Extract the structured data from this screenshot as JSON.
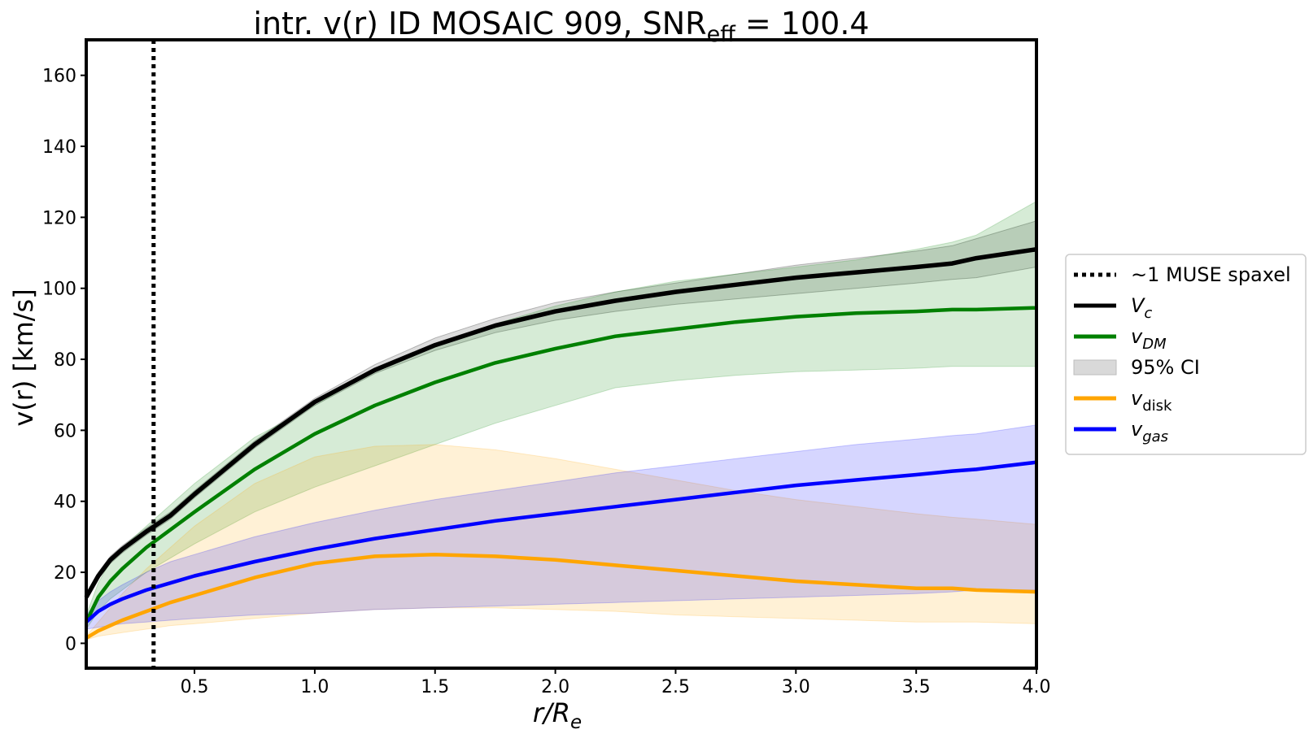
{
  "chart_data": {
    "type": "line",
    "title": {
      "main": "intr. v(r) ID MOSAIC 909, SNR",
      "sub": "eff",
      "tail": " = 100.4"
    },
    "xlabel": {
      "main": "r/R",
      "sub": "e"
    },
    "ylabel": "v(r) [km/s]",
    "xlim": [
      0.05,
      4.0
    ],
    "ylim": [
      -7,
      170
    ],
    "xticks": [
      0.5,
      1.0,
      1.5,
      2.0,
      2.5,
      3.0,
      3.5,
      4.0
    ],
    "xtick_labels": [
      "0.5",
      "1.0",
      "1.5",
      "2.0",
      "2.5",
      "3.0",
      "3.5",
      "4.0"
    ],
    "yticks": [
      0,
      20,
      40,
      60,
      80,
      100,
      120,
      140,
      160
    ],
    "ytick_labels": [
      "0",
      "20",
      "40",
      "60",
      "80",
      "100",
      "120",
      "140",
      "160"
    ],
    "grid": false,
    "legend_position": "outside-right",
    "vline": {
      "x": 0.33,
      "name": "~1 MUSE spaxel",
      "style": "dotted",
      "color": "#000000"
    },
    "x": [
      0.05,
      0.1,
      0.15,
      0.2,
      0.3,
      0.4,
      0.5,
      0.75,
      1.0,
      1.25,
      1.5,
      1.75,
      2.0,
      2.25,
      2.5,
      2.75,
      3.0,
      3.25,
      3.5,
      3.65,
      3.75,
      4.0
    ],
    "series": [
      {
        "name": "V",
        "sub": "c",
        "color": "#000000",
        "italic": true,
        "values": [
          13,
          19,
          23.5,
          26.5,
          31.5,
          36,
          42,
          56,
          68,
          77,
          84,
          89.5,
          93.5,
          96.5,
          99,
          101,
          103,
          104.5,
          106,
          107,
          108.5,
          111
        ],
        "band": [
          [
            12,
            14
          ],
          [
            18,
            20
          ],
          [
            22.5,
            24.5
          ],
          [
            25.5,
            27.5
          ],
          [
            30.5,
            32.5
          ],
          [
            35,
            37
          ],
          [
            41,
            43
          ],
          [
            55,
            57
          ],
          [
            67,
            69
          ],
          [
            76,
            78.5
          ],
          [
            82.5,
            86
          ],
          [
            87.5,
            91.5
          ],
          [
            91,
            96
          ],
          [
            93.5,
            99
          ],
          [
            95.5,
            101.5
          ],
          [
            97,
            104
          ],
          [
            98.5,
            106.5
          ],
          [
            100,
            108.5
          ],
          [
            101.5,
            110.5
          ],
          [
            102.5,
            112
          ],
          [
            103,
            114
          ],
          [
            106,
            119
          ]
        ]
      },
      {
        "name": "v",
        "sub": "DM",
        "color": "#008000",
        "italic": true,
        "values": [
          6,
          13,
          17.5,
          21,
          27,
          32,
          37,
          49,
          59,
          67,
          73.5,
          79,
          83,
          86.5,
          88.5,
          90.5,
          92,
          93,
          93.5,
          94,
          94,
          94.5
        ],
        "band": [
          [
            4,
            8
          ],
          [
            9,
            17
          ],
          [
            12.5,
            23
          ],
          [
            15,
            27
          ],
          [
            20,
            33
          ],
          [
            24,
            39
          ],
          [
            28,
            45
          ],
          [
            37,
            58
          ],
          [
            44,
            67
          ],
          [
            50,
            77
          ],
          [
            56,
            84
          ],
          [
            62,
            90
          ],
          [
            67,
            95
          ],
          [
            72,
            99
          ],
          [
            74,
            102
          ],
          [
            75.5,
            104
          ],
          [
            76.5,
            106
          ],
          [
            77,
            108
          ],
          [
            77.5,
            111
          ],
          [
            78,
            113
          ],
          [
            78,
            115
          ],
          [
            78,
            124.5
          ]
        ]
      },
      {
        "name": "95% CI",
        "sub": "",
        "color": "#d9d9d9",
        "italic": false,
        "legend_only": true
      },
      {
        "name": "v",
        "sub": "disk",
        "color": "#ffa500",
        "italic": true,
        "values": [
          1.5,
          3.5,
          5,
          6.5,
          9,
          11.5,
          13.5,
          18.5,
          22.5,
          24.5,
          25,
          24.5,
          23.5,
          22,
          20.5,
          19,
          17.5,
          16.5,
          15.5,
          15.5,
          15,
          14.5
        ],
        "band": [
          [
            1,
            2
          ],
          [
            2,
            6
          ],
          [
            2.5,
            10
          ],
          [
            3,
            14
          ],
          [
            4,
            21
          ],
          [
            5,
            27
          ],
          [
            5.5,
            33
          ],
          [
            7,
            45
          ],
          [
            8.5,
            52.5
          ],
          [
            9.5,
            55.5
          ],
          [
            10,
            56
          ],
          [
            10,
            54.5
          ],
          [
            9.5,
            52
          ],
          [
            9,
            49
          ],
          [
            8,
            46
          ],
          [
            7.5,
            43
          ],
          [
            7,
            40.5
          ],
          [
            6.5,
            38.5
          ],
          [
            6,
            36.5
          ],
          [
            6,
            35.5
          ],
          [
            6,
            35
          ],
          [
            5.5,
            33.5
          ]
        ]
      },
      {
        "name": "v",
        "sub": "gas",
        "color": "#0000ff",
        "italic": true,
        "values": [
          6,
          9,
          11,
          12.5,
          15,
          17,
          19,
          23,
          26.5,
          29.5,
          32,
          34.5,
          36.5,
          38.5,
          40.5,
          42.5,
          44.5,
          46,
          47.5,
          48.5,
          49,
          51
        ],
        "band": [
          [
            4,
            8
          ],
          [
            4.5,
            12
          ],
          [
            5,
            14.5
          ],
          [
            5.5,
            16.5
          ],
          [
            6,
            20
          ],
          [
            6.5,
            23
          ],
          [
            7,
            25
          ],
          [
            8,
            30
          ],
          [
            8.5,
            34
          ],
          [
            9.5,
            37.5
          ],
          [
            10,
            40.5
          ],
          [
            10.5,
            43
          ],
          [
            11,
            45.5
          ],
          [
            11.5,
            48
          ],
          [
            12,
            50
          ],
          [
            12.5,
            52
          ],
          [
            13,
            54
          ],
          [
            13.5,
            56
          ],
          [
            14,
            57.5
          ],
          [
            14.5,
            58.5
          ],
          [
            15,
            59
          ],
          [
            15,
            61.5
          ]
        ]
      }
    ]
  }
}
